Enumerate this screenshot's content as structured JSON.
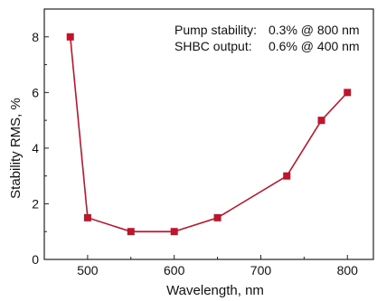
{
  "chart_data": {
    "type": "line",
    "title": "",
    "xlabel": "Wavelength, nm",
    "ylabel": "Stability RMS, %",
    "xlim": [
      450,
      830
    ],
    "ylim": [
      0,
      9
    ],
    "xticks": [
      500,
      600,
      700,
      800
    ],
    "yticks": [
      0,
      2,
      4,
      6,
      8
    ],
    "grid": false,
    "legend": "none",
    "annotations": [
      {
        "label": "Pump stability:",
        "value": "0.3% @ 800 nm"
      },
      {
        "label": "SHBC output:",
        "value": "0.6% @ 400 nm"
      }
    ],
    "series": [
      {
        "color": "#c0142a",
        "marker": "square",
        "x": [
          480,
          500,
          550,
          600,
          650,
          730,
          770,
          800
        ],
        "y": [
          8.0,
          1.5,
          1.0,
          1.0,
          1.5,
          3.0,
          5.0,
          6.0
        ]
      }
    ]
  }
}
